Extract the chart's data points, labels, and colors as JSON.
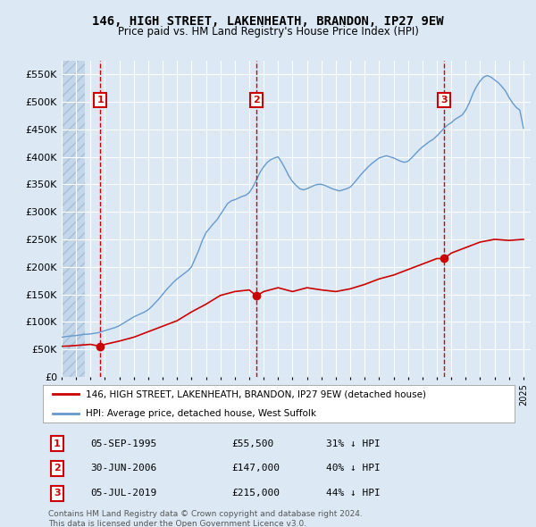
{
  "title": "146, HIGH STREET, LAKENHEATH, BRANDON, IP27 9EW",
  "subtitle": "Price paid vs. HM Land Registry's House Price Index (HPI)",
  "background_color": "#dce9f5",
  "plot_bg_color": "#dce9f5",
  "grid_color": "#ffffff",
  "ylim": [
    0,
    575000
  ],
  "yticks": [
    0,
    50000,
    100000,
    150000,
    200000,
    250000,
    300000,
    350000,
    400000,
    450000,
    500000,
    550000
  ],
  "ytick_labels": [
    "£0",
    "£50K",
    "£100K",
    "£150K",
    "£200K",
    "£250K",
    "£300K",
    "£350K",
    "£400K",
    "£450K",
    "£500K",
    "£550K"
  ],
  "xlim_start": 1993.0,
  "xlim_end": 2025.5,
  "sale_dates": [
    1995.67,
    2006.5,
    2019.51
  ],
  "sale_prices": [
    55500,
    147000,
    215000
  ],
  "sale_labels": [
    "1",
    "2",
    "3"
  ],
  "red_line_color": "#cc0000",
  "red_dot_color": "#cc0000",
  "blue_line_color": "#6699cc",
  "vline_color": "#cc0000",
  "legend_entries": [
    "146, HIGH STREET, LAKENHEATH, BRANDON, IP27 9EW (detached house)",
    "HPI: Average price, detached house, West Suffolk"
  ],
  "table_rows": [
    {
      "label": "1",
      "date": "05-SEP-1995",
      "price": "£55,500",
      "hpi": "31% ↓ HPI"
    },
    {
      "label": "2",
      "date": "30-JUN-2006",
      "price": "£147,000",
      "hpi": "40% ↓ HPI"
    },
    {
      "label": "3",
      "date": "05-JUL-2019",
      "price": "£215,000",
      "hpi": "44% ↓ HPI"
    }
  ],
  "footer": "Contains HM Land Registry data © Crown copyright and database right 2024.\nThis data is licensed under the Open Government Licence v3.0.",
  "hpi_years": [
    1993.0,
    1993.25,
    1993.5,
    1993.75,
    1994.0,
    1994.25,
    1994.5,
    1994.75,
    1995.0,
    1995.25,
    1995.5,
    1995.75,
    1996.0,
    1996.25,
    1996.5,
    1996.75,
    1997.0,
    1997.25,
    1997.5,
    1997.75,
    1998.0,
    1998.25,
    1998.5,
    1998.75,
    1999.0,
    1999.25,
    1999.5,
    1999.75,
    2000.0,
    2000.25,
    2000.5,
    2000.75,
    2001.0,
    2001.25,
    2001.5,
    2001.75,
    2002.0,
    2002.25,
    2002.5,
    2002.75,
    2003.0,
    2003.25,
    2003.5,
    2003.75,
    2004.0,
    2004.25,
    2004.5,
    2004.75,
    2005.0,
    2005.25,
    2005.5,
    2005.75,
    2006.0,
    2006.25,
    2006.5,
    2006.75,
    2007.0,
    2007.25,
    2007.5,
    2007.75,
    2008.0,
    2008.25,
    2008.5,
    2008.75,
    2009.0,
    2009.25,
    2009.5,
    2009.75,
    2010.0,
    2010.25,
    2010.5,
    2010.75,
    2011.0,
    2011.25,
    2011.5,
    2011.75,
    2012.0,
    2012.25,
    2012.5,
    2012.75,
    2013.0,
    2013.25,
    2013.5,
    2013.75,
    2014.0,
    2014.25,
    2014.5,
    2014.75,
    2015.0,
    2015.25,
    2015.5,
    2015.75,
    2016.0,
    2016.25,
    2016.5,
    2016.75,
    2017.0,
    2017.25,
    2017.5,
    2017.75,
    2018.0,
    2018.25,
    2018.5,
    2018.75,
    2019.0,
    2019.25,
    2019.5,
    2019.75,
    2020.0,
    2020.25,
    2020.5,
    2020.75,
    2021.0,
    2021.25,
    2021.5,
    2021.75,
    2022.0,
    2022.25,
    2022.5,
    2022.75,
    2023.0,
    2023.25,
    2023.5,
    2023.75,
    2024.0,
    2024.25,
    2024.5,
    2024.75,
    2025.0
  ],
  "hpi_values": [
    72000,
    73000,
    74000,
    74500,
    75000,
    76000,
    77000,
    77500,
    78000,
    79000,
    80000,
    82000,
    84000,
    86000,
    88000,
    90000,
    93000,
    97000,
    101000,
    105000,
    109000,
    112000,
    115000,
    118000,
    122000,
    128000,
    135000,
    142000,
    150000,
    158000,
    165000,
    172000,
    178000,
    183000,
    188000,
    193000,
    200000,
    215000,
    230000,
    248000,
    262000,
    270000,
    278000,
    285000,
    295000,
    305000,
    315000,
    320000,
    322000,
    325000,
    328000,
    330000,
    335000,
    345000,
    358000,
    372000,
    382000,
    390000,
    395000,
    398000,
    400000,
    390000,
    378000,
    365000,
    355000,
    348000,
    342000,
    340000,
    342000,
    345000,
    348000,
    350000,
    350000,
    348000,
    345000,
    342000,
    340000,
    338000,
    340000,
    342000,
    345000,
    352000,
    360000,
    368000,
    375000,
    382000,
    388000,
    393000,
    398000,
    400000,
    402000,
    400000,
    398000,
    395000,
    392000,
    390000,
    392000,
    398000,
    405000,
    412000,
    418000,
    423000,
    428000,
    432000,
    438000,
    445000,
    452000,
    458000,
    462000,
    468000,
    472000,
    476000,
    485000,
    498000,
    515000,
    528000,
    538000,
    545000,
    548000,
    545000,
    540000,
    535000,
    528000,
    520000,
    508000,
    498000,
    490000,
    485000,
    452000
  ],
  "red_line_years": [
    1993.0,
    1993.5,
    1994.0,
    1994.5,
    1995.0,
    1995.67,
    1996.0,
    1997.0,
    1998.0,
    1999.0,
    2000.0,
    2001.0,
    2002.0,
    2003.0,
    2004.0,
    2005.0,
    2006.0,
    2006.5,
    2007.0,
    2008.0,
    2009.0,
    2010.0,
    2011.0,
    2012.0,
    2013.0,
    2014.0,
    2015.0,
    2016.0,
    2017.0,
    2018.0,
    2019.0,
    2019.51,
    2020.0,
    2021.0,
    2022.0,
    2023.0,
    2024.0,
    2025.0
  ],
  "red_line_values": [
    55500,
    56000,
    57000,
    58000,
    59000,
    55500,
    59000,
    65000,
    72000,
    82000,
    92000,
    102000,
    118000,
    132000,
    148000,
    155000,
    158000,
    147000,
    155000,
    162000,
    155000,
    162000,
    158000,
    155000,
    160000,
    168000,
    178000,
    185000,
    195000,
    205000,
    215000,
    215000,
    225000,
    235000,
    245000,
    250000,
    248000,
    250000
  ]
}
